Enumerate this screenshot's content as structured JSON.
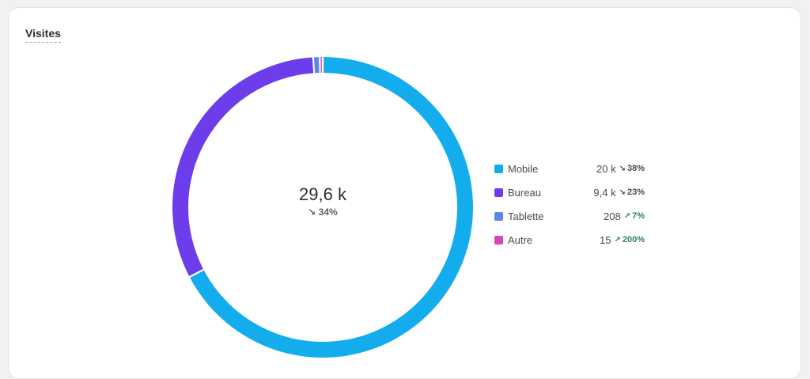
{
  "card": {
    "title": "Visites"
  },
  "chart_data": {
    "type": "donut",
    "title": "Visites",
    "total_label": "29,6 k",
    "total_change": "34%",
    "total_trend": "down",
    "series": [
      {
        "name": "Mobile",
        "value": 20000,
        "value_label": "20 k",
        "change": "38%",
        "trend": "down",
        "color": "#13adee"
      },
      {
        "name": "Bureau",
        "value": 9400,
        "value_label": "9,4 k",
        "change": "23%",
        "trend": "down",
        "color": "#6d3ceb"
      },
      {
        "name": "Tablette",
        "value": 208,
        "value_label": "208",
        "change": "7%",
        "trend": "up",
        "color": "#5b86eb"
      },
      {
        "name": "Autre",
        "value": 15,
        "value_label": "15",
        "change": "200%",
        "trend": "up",
        "color": "#d746b4"
      }
    ],
    "legend_position": "right"
  }
}
